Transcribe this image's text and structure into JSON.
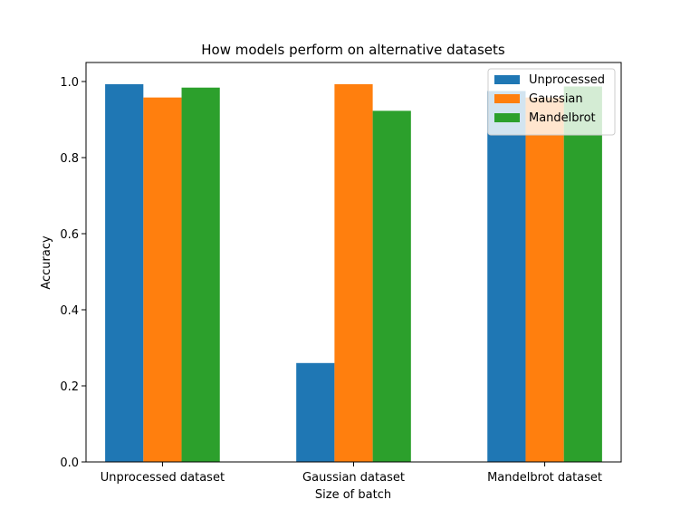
{
  "chart_data": {
    "type": "bar",
    "title": "How models perform on alternative datasets",
    "xlabel": "Size of batch",
    "ylabel": "Accuracy",
    "categories": [
      "Unprocessed dataset",
      "Gaussian dataset",
      "Mandelbrot dataset"
    ],
    "series": [
      {
        "name": "Unprocessed",
        "color": "#1f77b4",
        "values": [
          0.993,
          0.26,
          0.975
        ]
      },
      {
        "name": "Gaussian",
        "color": "#ff7f0e",
        "values": [
          0.958,
          0.993,
          0.958
        ]
      },
      {
        "name": "Mandelbrot",
        "color": "#2ca02c",
        "values": [
          0.984,
          0.923,
          0.987
        ]
      }
    ],
    "ylim": [
      0,
      1.05
    ],
    "yticks": [
      "0.0",
      "0.2",
      "0.4",
      "0.6",
      "0.8",
      "1.0"
    ],
    "grid": false,
    "legend_position": "upper right"
  }
}
